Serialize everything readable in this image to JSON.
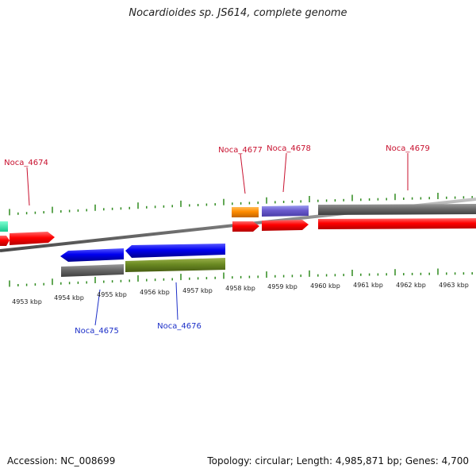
{
  "title": "Nocardioides sp. JS614, complete genome",
  "footer": {
    "accession": "Accession: NC_008699",
    "stats": "Topology: circular; Length: 4,985,871 bp; Genes: 4,700"
  },
  "colors": {
    "background": "#ffffff",
    "backbone": "#808080",
    "tick": "#2f8a1e",
    "plus_label": "#c8102e",
    "minus_label": "#1c2fc8"
  },
  "kbp_labels": [
    "4953 kbp",
    "4954 kbp",
    "4955 kbp",
    "4956 kbp",
    "4957 kbp",
    "4958 kbp",
    "4959 kbp",
    "4960 kbp",
    "4961 kbp",
    "4962 kbp",
    "4963 kbp"
  ],
  "gene_labels": {
    "top": [
      "Noca_4674",
      "Noca_4677",
      "Noca_4678",
      "Noca_4679"
    ],
    "bottom": [
      "Noca_4675",
      "Noca_4676"
    ]
  }
}
